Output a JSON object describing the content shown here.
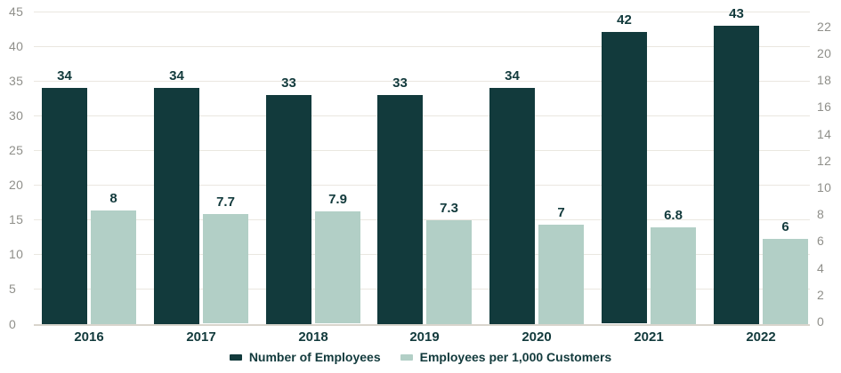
{
  "chart_data": {
    "type": "bar",
    "title": "",
    "categories": [
      "2016",
      "2017",
      "2018",
      "2019",
      "2020",
      "2021",
      "2022"
    ],
    "series": [
      {
        "name": "Number of Employees",
        "axis": "left",
        "color": "#123a3c",
        "values": [
          34,
          34,
          33,
          33,
          34,
          42,
          43
        ],
        "labels": [
          "34",
          "34",
          "33",
          "33",
          "34",
          "42",
          "43"
        ]
      },
      {
        "name": "Employees per 1,000 Customers",
        "axis": "right",
        "color": "#b2cfc6",
        "values": [
          8,
          7.7,
          7.9,
          7.3,
          7,
          6.8,
          6
        ],
        "labels": [
          "8",
          "7.7",
          "7.9",
          "7.3",
          "7",
          "6.8",
          "6"
        ]
      }
    ],
    "left_axis": {
      "min": 0,
      "max": 45,
      "step": 5,
      "ticks": [
        "0",
        "5",
        "10",
        "15",
        "20",
        "25",
        "30",
        "35",
        "40",
        "45"
      ]
    },
    "right_axis": {
      "min": 0,
      "max": 22,
      "step": 2,
      "ticks": [
        "0",
        "2",
        "4",
        "6",
        "8",
        "10",
        "12",
        "14",
        "16",
        "18",
        "20",
        "22"
      ]
    },
    "grid": "horizontal",
    "legend_position": "bottom"
  },
  "legend": {
    "items": [
      {
        "label": "Number of Employees",
        "color": "#123a3c"
      },
      {
        "label": "Employees per 1,000 Customers",
        "color": "#b2cfc6"
      }
    ]
  },
  "colors": {
    "bar_dark": "#123a3c",
    "bar_light": "#b2cfc6",
    "label_text": "#123a3c",
    "axis_text": "#8f8f8a",
    "gridline": "#eae7e0",
    "baseline": "#d9d5cd",
    "background": "#ffffff"
  }
}
